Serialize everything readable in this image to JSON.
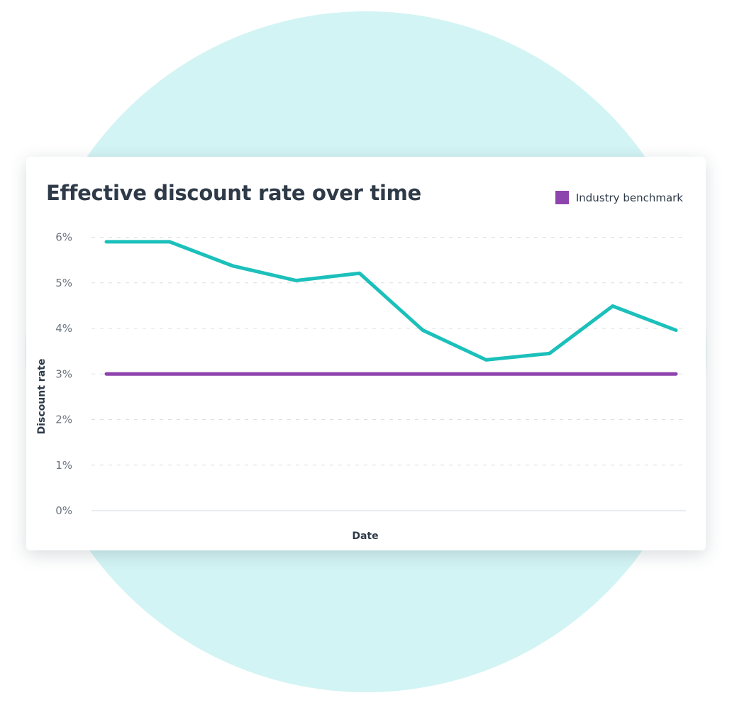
{
  "chart_data": {
    "type": "line",
    "title": "Effective discount rate over time",
    "xlabel": "Date",
    "ylabel": "Discount rate",
    "ylim": [
      0,
      6
    ],
    "yticks": [
      "0%",
      "1%",
      "2%",
      "3%",
      "4%",
      "5%",
      "6%"
    ],
    "grid": true,
    "legend_placement": "top-right",
    "series": [
      {
        "color": "#1cc0bb",
        "values": [
          5.9,
          5.9,
          5.37,
          5.05,
          5.21,
          3.96,
          3.31,
          3.45,
          4.49,
          3.96
        ]
      },
      {
        "name": "Industry benchmark",
        "color": "#8e44ad",
        "values": [
          3,
          3,
          3,
          3,
          3,
          3,
          3,
          3,
          3,
          3
        ]
      }
    ]
  }
}
